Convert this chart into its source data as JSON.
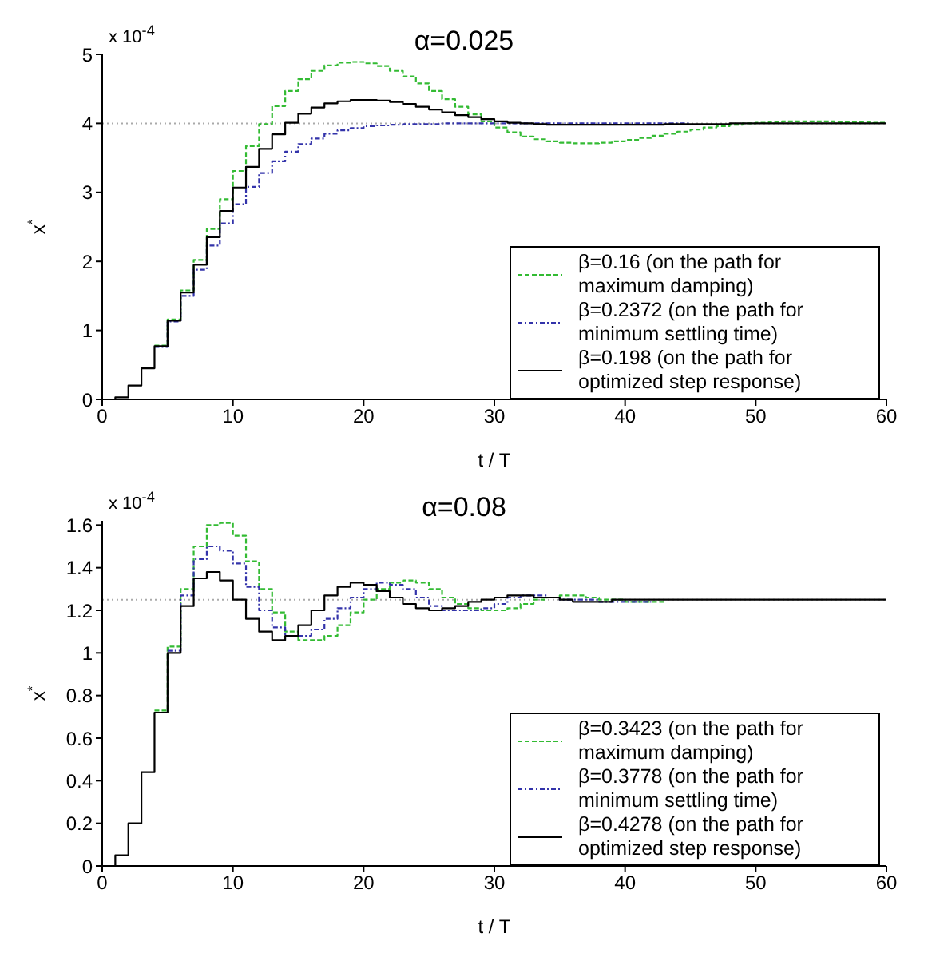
{
  "chart_data": [
    {
      "type": "step",
      "title": "α=0.025",
      "xlabel": "t / T",
      "ylabel": "x$^{*}$",
      "annotations": [
        "x 10$^{-4}$"
      ],
      "xlim": [
        0,
        60
      ],
      "xticks": [
        0,
        10,
        20,
        30,
        40,
        50,
        60
      ],
      "ylim": [
        0,
        5
      ],
      "yticks": [
        0,
        1,
        2,
        3,
        4,
        5
      ],
      "legend": "bottom right",
      "ref_lines": [
        {
          "axis": "y",
          "value": 4,
          "color": "#aaaaaa",
          "line_style": "dotted"
        }
      ],
      "x": [
        0,
        1,
        2,
        3,
        4,
        5,
        6,
        7,
        8,
        9,
        10,
        11,
        12,
        13,
        14,
        15,
        16,
        17,
        18,
        19,
        20,
        21,
        22,
        23,
        24,
        25,
        26,
        27,
        28,
        29,
        30,
        31,
        32,
        33,
        34,
        35,
        36,
        37,
        38,
        39,
        40,
        41,
        42,
        43,
        44,
        45,
        46,
        47,
        48,
        49,
        50,
        51,
        52,
        53,
        54,
        55,
        56,
        57,
        58,
        59,
        60
      ],
      "series": [
        {
          "name": "β=0.16 (on the path for maximum damping)",
          "color": "#33bb33",
          "line_style": "dashed",
          "values": [
            null,
            null,
            null,
            null,
            0.78,
            1.16,
            1.58,
            2.02,
            2.47,
            2.9,
            3.31,
            3.67,
            3.99,
            4.25,
            4.47,
            4.64,
            4.76,
            4.84,
            4.88,
            4.89,
            4.87,
            4.83,
            4.76,
            4.68,
            4.58,
            4.47,
            4.35,
            4.24,
            4.13,
            4.03,
            3.94,
            3.87,
            3.81,
            3.77,
            3.74,
            3.72,
            3.71,
            3.71,
            3.72,
            3.74,
            3.76,
            3.79,
            3.82,
            3.85,
            3.88,
            3.91,
            3.94,
            3.96,
            3.98,
            4,
            4.01,
            4.02,
            4.03,
            4.03,
            4.03,
            4.03,
            4.02,
            4.02,
            4.02,
            4.01,
            4.01
          ]
        },
        {
          "name": "β=0.2372 (on the path for minimum settling time)",
          "color": "#3333aa",
          "line_style": "dotted",
          "values": [
            null,
            null,
            null,
            null,
            0.76,
            1.13,
            1.5,
            1.88,
            2.23,
            2.55,
            2.83,
            3.08,
            3.28,
            3.45,
            3.59,
            3.7,
            3.78,
            3.85,
            3.9,
            3.93,
            3.96,
            3.97,
            3.98,
            3.99,
            3.99,
            3.99,
            4,
            4,
            4,
            4,
            4,
            4,
            4,
            4,
            4,
            4,
            4,
            4,
            4,
            4,
            4,
            4,
            4,
            4,
            4,
            4,
            null,
            null,
            null,
            null,
            null,
            null,
            null,
            null,
            null,
            null,
            null,
            null,
            null,
            null,
            null
          ]
        },
        {
          "name": "β=0.198 (on the path for optimized step response)",
          "color": "#000000",
          "line_style": "solid",
          "values": [
            0,
            0.03,
            0.2,
            0.45,
            0.77,
            1.14,
            1.55,
            1.95,
            2.35,
            2.73,
            3.07,
            3.37,
            3.63,
            3.84,
            4.01,
            4.14,
            4.23,
            4.29,
            4.32,
            4.34,
            4.34,
            4.33,
            4.31,
            4.28,
            4.24,
            4.2,
            4.16,
            4.12,
            4.09,
            4.06,
            4.03,
            4.01,
            4,
            3.99,
            3.98,
            3.98,
            3.98,
            3.98,
            3.98,
            3.98,
            3.98,
            3.98,
            3.98,
            3.99,
            3.99,
            3.99,
            3.99,
            3.99,
            4,
            4,
            4,
            4,
            4,
            4,
            4,
            4,
            4,
            4,
            4,
            4,
            4
          ]
        }
      ]
    },
    {
      "type": "step",
      "title": "α=0.08",
      "xlabel": "t / T",
      "ylabel": "x$^{*}$",
      "annotations": [
        "x 10$^{-4}$"
      ],
      "xlim": [
        0,
        60
      ],
      "xticks": [
        0,
        10,
        20,
        30,
        40,
        50,
        60
      ],
      "ylim": [
        0,
        1.62
      ],
      "yticks": [
        0,
        0.2,
        0.4,
        0.6,
        0.8,
        1,
        1.2,
        1.4,
        1.6
      ],
      "legend": "bottom right",
      "ref_lines": [
        {
          "axis": "y",
          "value": 1.25,
          "color": "#aaaaaa",
          "line_style": "dotted"
        }
      ],
      "x": [
        0,
        1,
        2,
        3,
        4,
        5,
        6,
        7,
        8,
        9,
        10,
        11,
        12,
        13,
        14,
        15,
        16,
        17,
        18,
        19,
        20,
        21,
        22,
        23,
        24,
        25,
        26,
        27,
        28,
        29,
        30,
        31,
        32,
        33,
        34,
        35,
        36,
        37,
        38,
        39,
        40,
        41,
        42,
        43,
        44,
        45,
        46,
        47,
        48,
        49,
        50,
        51,
        52,
        53,
        54,
        55,
        56,
        57,
        58,
        59,
        60
      ],
      "series": [
        {
          "name": "β=0.3423 (on the path for maximum damping)",
          "color": "#33bb33",
          "line_style": "dashed",
          "values": [
            null,
            null,
            null,
            null,
            0.73,
            1.03,
            1.3,
            1.5,
            1.6,
            1.61,
            1.55,
            1.43,
            1.3,
            1.19,
            1.1,
            1.06,
            1.06,
            1.08,
            1.13,
            1.19,
            1.25,
            1.3,
            1.33,
            1.34,
            1.33,
            1.3,
            1.26,
            1.23,
            1.21,
            1.2,
            1.2,
            1.21,
            1.23,
            1.25,
            1.26,
            1.27,
            1.27,
            1.26,
            1.25,
            1.25,
            1.24,
            1.24,
            1.24,
            1.24,
            null,
            null,
            null,
            null,
            null,
            null,
            null,
            null,
            null,
            null,
            null,
            null,
            null,
            null,
            null,
            null,
            null
          ]
        },
        {
          "name": "β=0.3778 (on the path for minimum settling time)",
          "color": "#3333aa",
          "line_style": "dotted",
          "values": [
            null,
            null,
            null,
            null,
            null,
            1.01,
            1.27,
            1.44,
            1.5,
            1.48,
            1.42,
            1.31,
            1.2,
            1.12,
            1.08,
            1.08,
            1.11,
            1.16,
            1.21,
            1.26,
            1.3,
            1.33,
            1.32,
            1.3,
            1.26,
            1.22,
            1.2,
            1.2,
            1.2,
            1.21,
            1.23,
            1.26,
            1.27,
            1.27,
            1.26,
            1.25,
            1.25,
            1.25,
            1.24,
            1.24,
            1.24,
            1.24,
            1.24,
            null,
            null,
            null,
            null,
            null,
            null,
            null,
            null,
            null,
            null,
            null,
            null,
            null,
            null,
            null,
            null,
            null,
            null
          ]
        },
        {
          "name": "β=0.4278 (on the path for optimized step response)",
          "color": "#000000",
          "line_style": "solid",
          "values": [
            0,
            0.05,
            0.2,
            0.44,
            0.72,
            1,
            1.22,
            1.35,
            1.38,
            1.34,
            1.25,
            1.16,
            1.1,
            1.06,
            1.08,
            1.13,
            1.2,
            1.27,
            1.31,
            1.33,
            1.32,
            1.29,
            1.26,
            1.23,
            1.21,
            1.2,
            1.21,
            1.22,
            1.24,
            1.25,
            1.26,
            1.27,
            1.27,
            1.26,
            1.26,
            1.25,
            1.24,
            1.24,
            1.24,
            1.25,
            1.25,
            1.25,
            1.25,
            1.25,
            1.25,
            1.25,
            1.25,
            1.25,
            1.25,
            1.25,
            1.25,
            1.25,
            1.25,
            1.25,
            1.25,
            1.25,
            1.25,
            1.25,
            1.25,
            1.25,
            1.25
          ]
        }
      ]
    }
  ]
}
